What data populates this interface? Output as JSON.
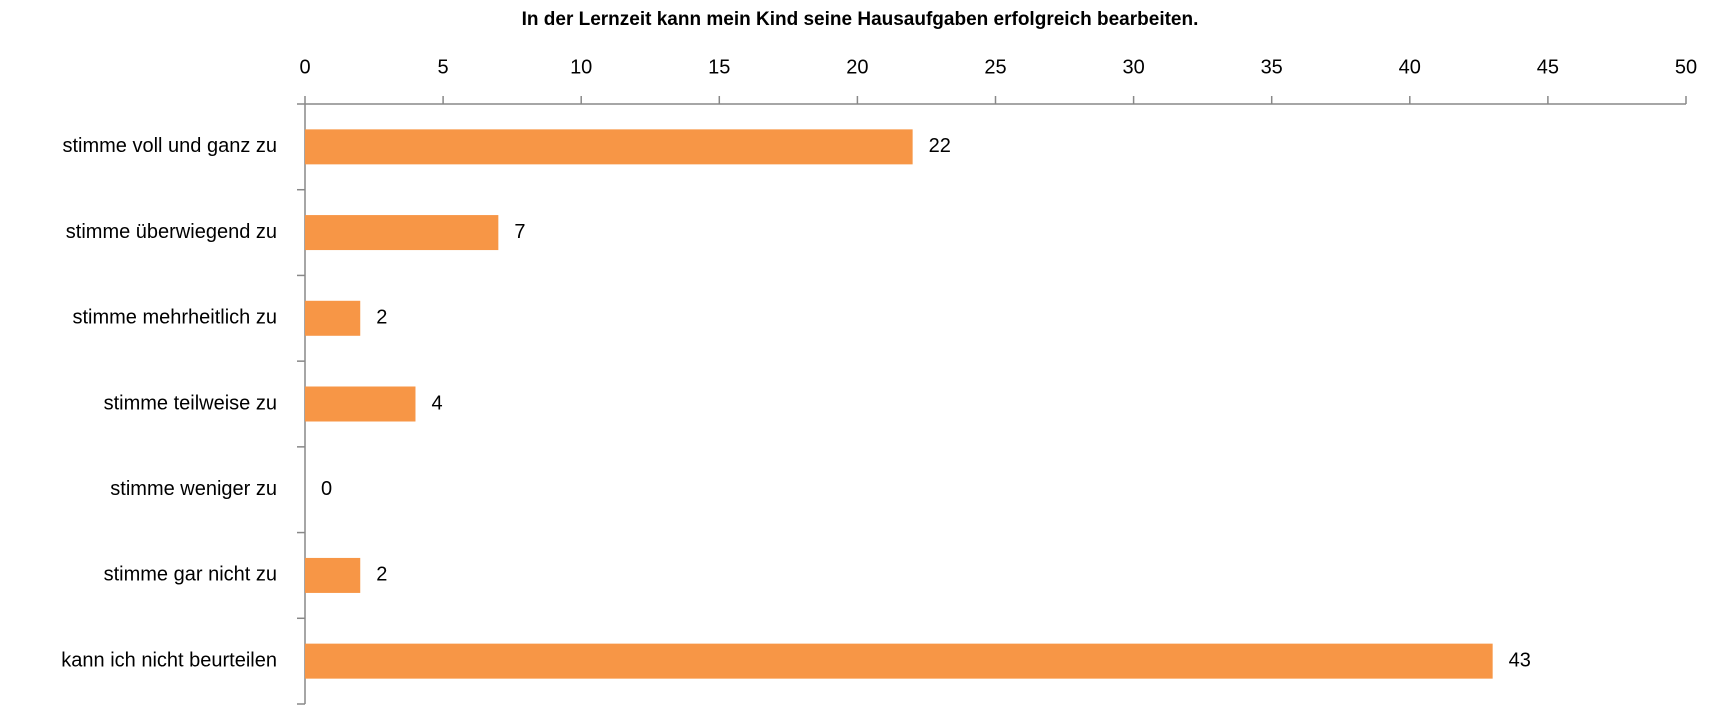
{
  "chart_data": {
    "type": "bar",
    "orientation": "horizontal",
    "title": "In der Lernzeit kann mein Kind seine Hausaufgaben erfolgreich bearbeiten.",
    "categories": [
      "stimme voll und ganz zu",
      "stimme überwiegend zu",
      "stimme mehrheitlich zu",
      "stimme teilweise zu",
      "stimme weniger zu",
      "stimme gar nicht zu",
      "kann ich nicht beurteilen"
    ],
    "values": [
      22,
      7,
      2,
      4,
      0,
      2,
      43
    ],
    "color": "#f79646",
    "xlim": [
      0,
      50
    ],
    "xticks": [
      0,
      5,
      10,
      15,
      20,
      25,
      30,
      35,
      40,
      45,
      50
    ],
    "grid": false
  }
}
